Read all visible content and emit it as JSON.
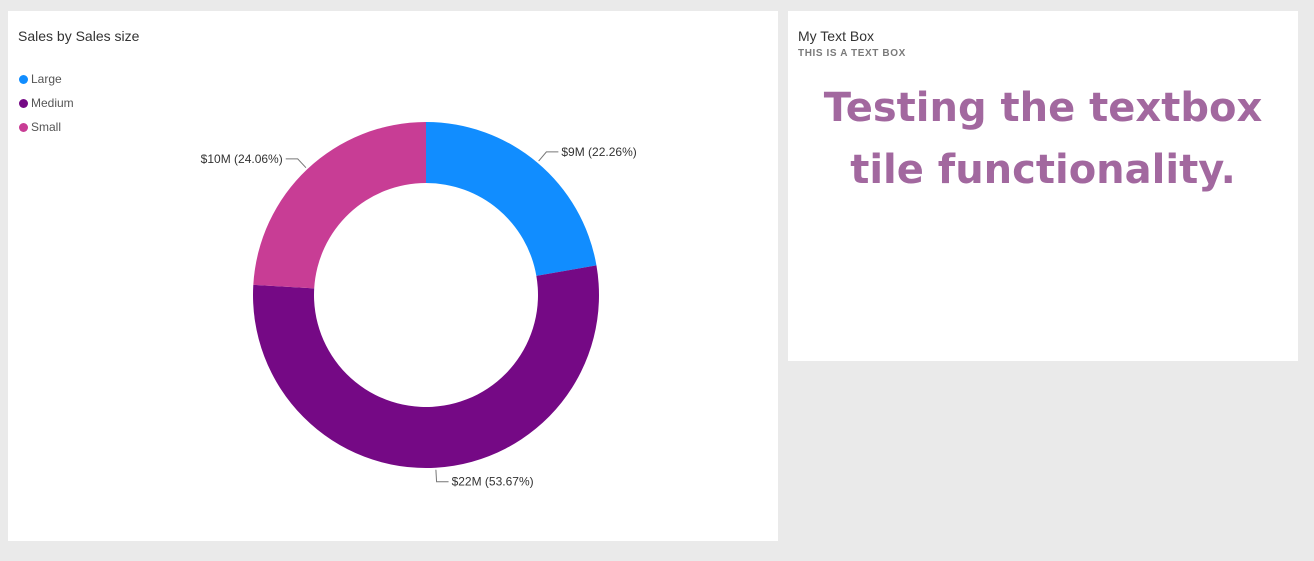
{
  "chart_tile": {
    "title": "Sales by Sales size"
  },
  "chart_data": {
    "type": "pie",
    "subtype": "donut",
    "title": "Sales by Sales size",
    "legend": "top-left",
    "categories": [
      "Large",
      "Medium",
      "Small"
    ],
    "values": [
      22.26,
      53.67,
      24.06
    ],
    "data_labels": [
      "$9M (22.26%)",
      "$22M (53.67%)",
      "$10M (24.06%)"
    ],
    "colors": [
      "#118dff",
      "#750985",
      "#c83d95"
    ]
  },
  "text_tile": {
    "title": "My Text Box",
    "subtitle": "THIS IS A TEXT BOX",
    "body_line1": "Testing the textbox",
    "body_line2": "tile functionality.",
    "body_color": "#a2689f"
  }
}
